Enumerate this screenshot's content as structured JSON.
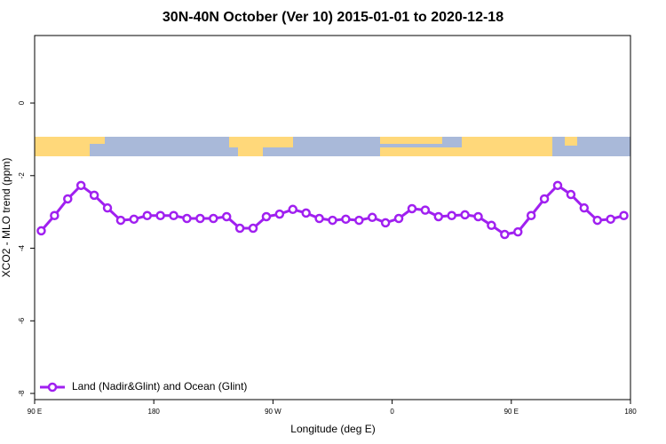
{
  "chart_data": {
    "type": "line",
    "title": "30N-40N October (Ver 10)   2015-01-01 to 2020-12-18",
    "x_label": "Longitude (deg E)",
    "y_label": "XCO2 - MLO trend (ppm)",
    "x": [
      95,
      105,
      115,
      125,
      135,
      145,
      155,
      165,
      175,
      185,
      195,
      205,
      215,
      225,
      235,
      245,
      255,
      265,
      275,
      285,
      295,
      305,
      315,
      325,
      335,
      345,
      355,
      365,
      375,
      385,
      395,
      405,
      415,
      425,
      435,
      445,
      455,
      465,
      475,
      485,
      495,
      505,
      515,
      525,
      535
    ],
    "series": [
      {
        "name": "Land (Nadir&Glint) and Ocean (Glint)",
        "color": "#a020f0",
        "values": [
          -3.52,
          -3.1,
          -2.64,
          -2.27,
          -2.54,
          -2.89,
          -3.23,
          -3.2,
          -3.1,
          -3.1,
          -3.1,
          -3.18,
          -3.18,
          -3.18,
          -3.13,
          -3.45,
          -3.45,
          -3.13,
          -3.06,
          -2.93,
          -3.03,
          -3.18,
          -3.23,
          -3.2,
          -3.23,
          -3.15,
          -3.3,
          -3.18,
          -2.91,
          -2.95,
          -3.13,
          -3.1,
          -3.08,
          -3.13,
          -3.37,
          -3.62,
          -3.55,
          -3.1,
          -2.64,
          -2.27,
          -2.52,
          -2.89,
          -3.23,
          -3.2,
          -3.1
        ]
      }
    ],
    "xlim": [
      90,
      540
    ],
    "ylim": [
      -8.17,
      1.86
    ],
    "xticks": [
      {
        "value": 90,
        "label": "90 E"
      },
      180,
      {
        "value": 270,
        "label": "90 W"
      },
      {
        "value": 360,
        "label": "0"
      },
      {
        "value": 450,
        "label": "90 E"
      },
      {
        "value": 540,
        "label": "180"
      }
    ],
    "yticks": [
      -8,
      -6,
      -4,
      -2,
      0
    ],
    "legend": "bottom-left"
  }
}
